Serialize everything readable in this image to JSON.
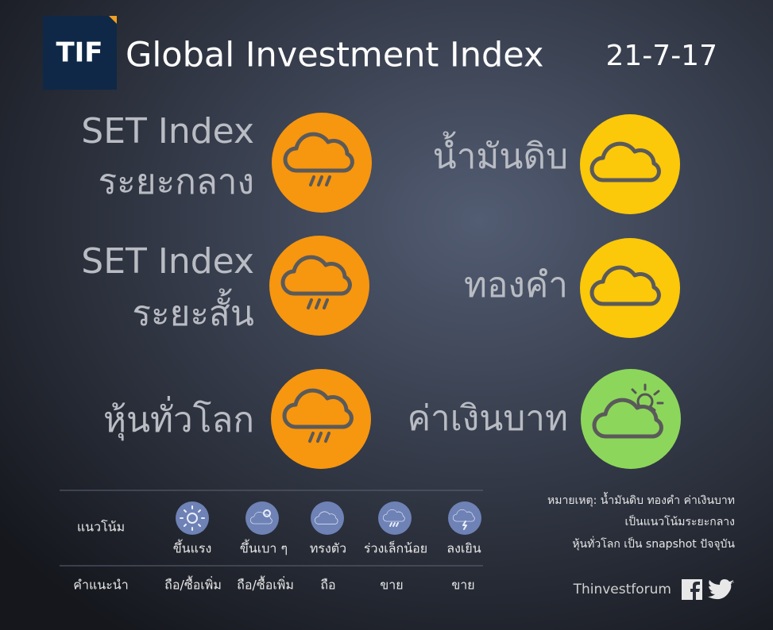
{
  "header": {
    "logo": "TIF",
    "title": "Global Investment Index",
    "date": "21-7-17"
  },
  "items": [
    {
      "label": [
        "SET Index",
        "ระยะกลาง"
      ]
    },
    {
      "label": [
        "SET Index",
        "ระยะสั้น"
      ]
    },
    {
      "label": [
        "หุ้นทั่วโลก"
      ]
    },
    {
      "label": [
        "น้ำมันดิบ"
      ]
    },
    {
      "label": [
        "ทองคำ"
      ]
    },
    {
      "label": [
        "ค่าเงินบาท"
      ]
    }
  ],
  "legend": {
    "row_labels": [
      "แนวโน้ม",
      "คำแนะนำ"
    ],
    "columns": [
      {
        "trend": "ขึ้นแรง",
        "advice": "ถือ/ซื้อเพิ่ม"
      },
      {
        "trend": "ขึ้นเบา ๆ",
        "advice": "ถือ/ซื้อเพิ่ม"
      },
      {
        "trend": "ทรงตัว",
        "advice": "ถือ"
      },
      {
        "trend": "ร่วงเล็กน้อย",
        "advice": "ขาย"
      },
      {
        "trend": "ลงเยิน",
        "advice": "ขาย"
      }
    ]
  },
  "note": [
    "หมายเหตุ: น้ำมันดิบ ทองคำ ค่าเงินบาท",
    "เป็นแนวโน้มระยะกลาง",
    "หุ้นทั่วโลก เป็น snapshot ปัจจุบัน"
  ],
  "footer": {
    "brand": "Thinvestforum"
  }
}
